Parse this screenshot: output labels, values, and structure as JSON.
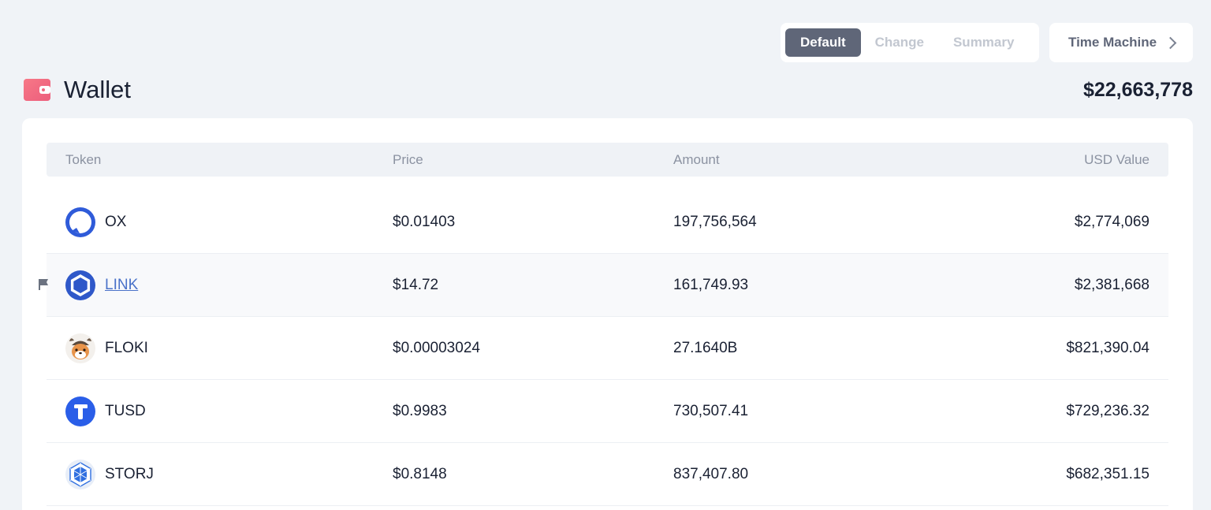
{
  "view_toggle": {
    "options": [
      "Default",
      "Change",
      "Summary"
    ],
    "active": "Default"
  },
  "time_machine": {
    "label": "Time Machine"
  },
  "wallet": {
    "title": "Wallet",
    "total": "$22,663,778",
    "icon_color": "#f0677f"
  },
  "table": {
    "headers": {
      "token": "Token",
      "price": "Price",
      "amount": "Amount",
      "usd_value": "USD Value"
    },
    "rows": [
      {
        "token": "OX",
        "icon": "ox-icon",
        "price": "$0.01403",
        "amount": "197,756,564",
        "usd_value": "$2,774,069"
      },
      {
        "token": "LINK",
        "icon": "chainlink-icon",
        "price": "$14.72",
        "amount": "161,749.93",
        "usd_value": "$2,381,668"
      },
      {
        "token": "FLOKI",
        "icon": "floki-icon",
        "price": "$0.00003024",
        "amount": "27.1640B",
        "usd_value": "$821,390.04"
      },
      {
        "token": "TUSD",
        "icon": "tusd-icon",
        "price": "$0.9983",
        "amount": "730,507.41",
        "usd_value": "$729,236.32"
      },
      {
        "token": "STORJ",
        "icon": "storj-icon",
        "price": "$0.8148",
        "amount": "837,407.80",
        "usd_value": "$682,351.15"
      }
    ]
  }
}
